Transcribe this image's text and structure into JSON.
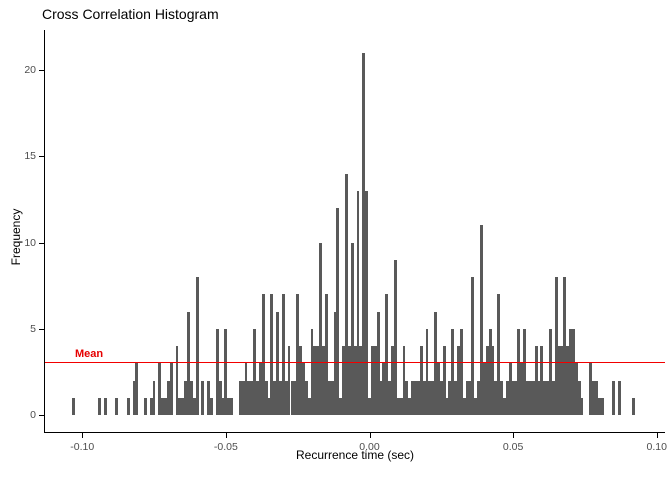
{
  "title": "Cross Correlation Histogram",
  "chart_data": {
    "type": "bar",
    "subtype": "histogram",
    "title": "Cross Correlation Histogram",
    "xlabel": "Recurrence time (sec)",
    "ylabel": "Frequency",
    "xlim": [
      -0.113,
      0.103
    ],
    "ylim": [
      0,
      22.3
    ],
    "grid": false,
    "legend": false,
    "bin_width_sec": 0.001,
    "x_ticks": [
      {
        "value": -0.1,
        "label": "-0.10"
      },
      {
        "value": -0.05,
        "label": "-0.05"
      },
      {
        "value": 0.0,
        "label": "0.00"
      },
      {
        "value": 0.05,
        "label": "0.05"
      },
      {
        "value": 0.1,
        "label": "0.10"
      }
    ],
    "y_ticks": [
      {
        "value": 0,
        "label": "0"
      },
      {
        "value": 5,
        "label": "5"
      },
      {
        "value": 10,
        "label": "10"
      },
      {
        "value": 15,
        "label": "15"
      },
      {
        "value": 20,
        "label": "20"
      }
    ],
    "mean_line": {
      "label": "Mean",
      "value": 3.1
    },
    "colors": {
      "bar": "#595959",
      "mean_line": "#f20000",
      "mean_label": "#e60000",
      "axis": "#000000",
      "tick_label": "#4d4d4d",
      "title": "#000000"
    },
    "bins_note": "each entry is [lag in ms (bin center), frequency]; bin width 1 ms",
    "bins": [
      [
        -103,
        1
      ],
      [
        -94,
        1
      ],
      [
        -92,
        1
      ],
      [
        -88,
        1
      ],
      [
        -84,
        1
      ],
      [
        -82,
        2
      ],
      [
        -81,
        3
      ],
      [
        -78,
        1
      ],
      [
        -76,
        1
      ],
      [
        -75,
        2
      ],
      [
        -73,
        3
      ],
      [
        -72,
        1
      ],
      [
        -71,
        1
      ],
      [
        -70,
        2
      ],
      [
        -69,
        3
      ],
      [
        -67,
        4
      ],
      [
        -66,
        1
      ],
      [
        -65,
        1
      ],
      [
        -64,
        2
      ],
      [
        -63,
        6
      ],
      [
        -62,
        2
      ],
      [
        -61,
        1
      ],
      [
        -60,
        8
      ],
      [
        -58,
        2
      ],
      [
        -56,
        2
      ],
      [
        -55,
        1
      ],
      [
        -53,
        5
      ],
      [
        -52,
        2
      ],
      [
        -51,
        1
      ],
      [
        -50,
        5
      ],
      [
        -49,
        1
      ],
      [
        -48,
        1
      ],
      [
        -45,
        2
      ],
      [
        -44,
        2
      ],
      [
        -43,
        3
      ],
      [
        -42,
        2
      ],
      [
        -41,
        2
      ],
      [
        -40,
        5
      ],
      [
        -39,
        2
      ],
      [
        -38,
        3
      ],
      [
        -37,
        7
      ],
      [
        -36,
        2
      ],
      [
        -35,
        1
      ],
      [
        -34,
        7
      ],
      [
        -33,
        2
      ],
      [
        -32,
        6
      ],
      [
        -31,
        2
      ],
      [
        -30,
        7
      ],
      [
        -29,
        2
      ],
      [
        -28,
        4
      ],
      [
        -27,
        2
      ],
      [
        -26,
        2
      ],
      [
        -25,
        7
      ],
      [
        -24,
        4
      ],
      [
        -23,
        3
      ],
      [
        -22,
        2
      ],
      [
        -21,
        1
      ],
      [
        -20,
        5
      ],
      [
        -19,
        4
      ],
      [
        -18,
        4
      ],
      [
        -17,
        10
      ],
      [
        -16,
        4
      ],
      [
        -15,
        7
      ],
      [
        -14,
        2
      ],
      [
        -13,
        2
      ],
      [
        -12,
        6
      ],
      [
        -11,
        12
      ],
      [
        -10,
        1
      ],
      [
        -9,
        4
      ],
      [
        -8,
        14
      ],
      [
        -7,
        4
      ],
      [
        -6,
        10
      ],
      [
        -5,
        4
      ],
      [
        -4,
        13
      ],
      [
        -3,
        4
      ],
      [
        -2,
        21
      ],
      [
        -1,
        13
      ],
      [
        0,
        1
      ],
      [
        1,
        4
      ],
      [
        2,
        4
      ],
      [
        3,
        6
      ],
      [
        4,
        2
      ],
      [
        5,
        3
      ],
      [
        6,
        7
      ],
      [
        7,
        2
      ],
      [
        8,
        4
      ],
      [
        9,
        9
      ],
      [
        10,
        1
      ],
      [
        11,
        1
      ],
      [
        12,
        4
      ],
      [
        13,
        2
      ],
      [
        14,
        1
      ],
      [
        15,
        2
      ],
      [
        16,
        2
      ],
      [
        17,
        2
      ],
      [
        18,
        4
      ],
      [
        19,
        2
      ],
      [
        20,
        5
      ],
      [
        21,
        2
      ],
      [
        22,
        2
      ],
      [
        23,
        6
      ],
      [
        24,
        3
      ],
      [
        25,
        2
      ],
      [
        26,
        4
      ],
      [
        27,
        1
      ],
      [
        28,
        2
      ],
      [
        29,
        5
      ],
      [
        30,
        2
      ],
      [
        31,
        4
      ],
      [
        32,
        5
      ],
      [
        33,
        1
      ],
      [
        34,
        2
      ],
      [
        35,
        2
      ],
      [
        36,
        8
      ],
      [
        37,
        1
      ],
      [
        38,
        2
      ],
      [
        39,
        11
      ],
      [
        40,
        3
      ],
      [
        41,
        4
      ],
      [
        42,
        5
      ],
      [
        43,
        4
      ],
      [
        44,
        2
      ],
      [
        45,
        7
      ],
      [
        46,
        2
      ],
      [
        47,
        1
      ],
      [
        48,
        2
      ],
      [
        49,
        3
      ],
      [
        50,
        2
      ],
      [
        51,
        2
      ],
      [
        52,
        5
      ],
      [
        53,
        3
      ],
      [
        54,
        5
      ],
      [
        55,
        2
      ],
      [
        56,
        2
      ],
      [
        57,
        2
      ],
      [
        58,
        4
      ],
      [
        59,
        2
      ],
      [
        60,
        4
      ],
      [
        61,
        2
      ],
      [
        62,
        2
      ],
      [
        63,
        5
      ],
      [
        64,
        2
      ],
      [
        65,
        8
      ],
      [
        66,
        4
      ],
      [
        67,
        4
      ],
      [
        68,
        8
      ],
      [
        69,
        4
      ],
      [
        70,
        5
      ],
      [
        71,
        5
      ],
      [
        72,
        3
      ],
      [
        73,
        2
      ],
      [
        74,
        1
      ],
      [
        77,
        3
      ],
      [
        78,
        2
      ],
      [
        79,
        2
      ],
      [
        80,
        1
      ],
      [
        81,
        1
      ],
      [
        85,
        2
      ],
      [
        87,
        2
      ],
      [
        92,
        1
      ]
    ]
  }
}
